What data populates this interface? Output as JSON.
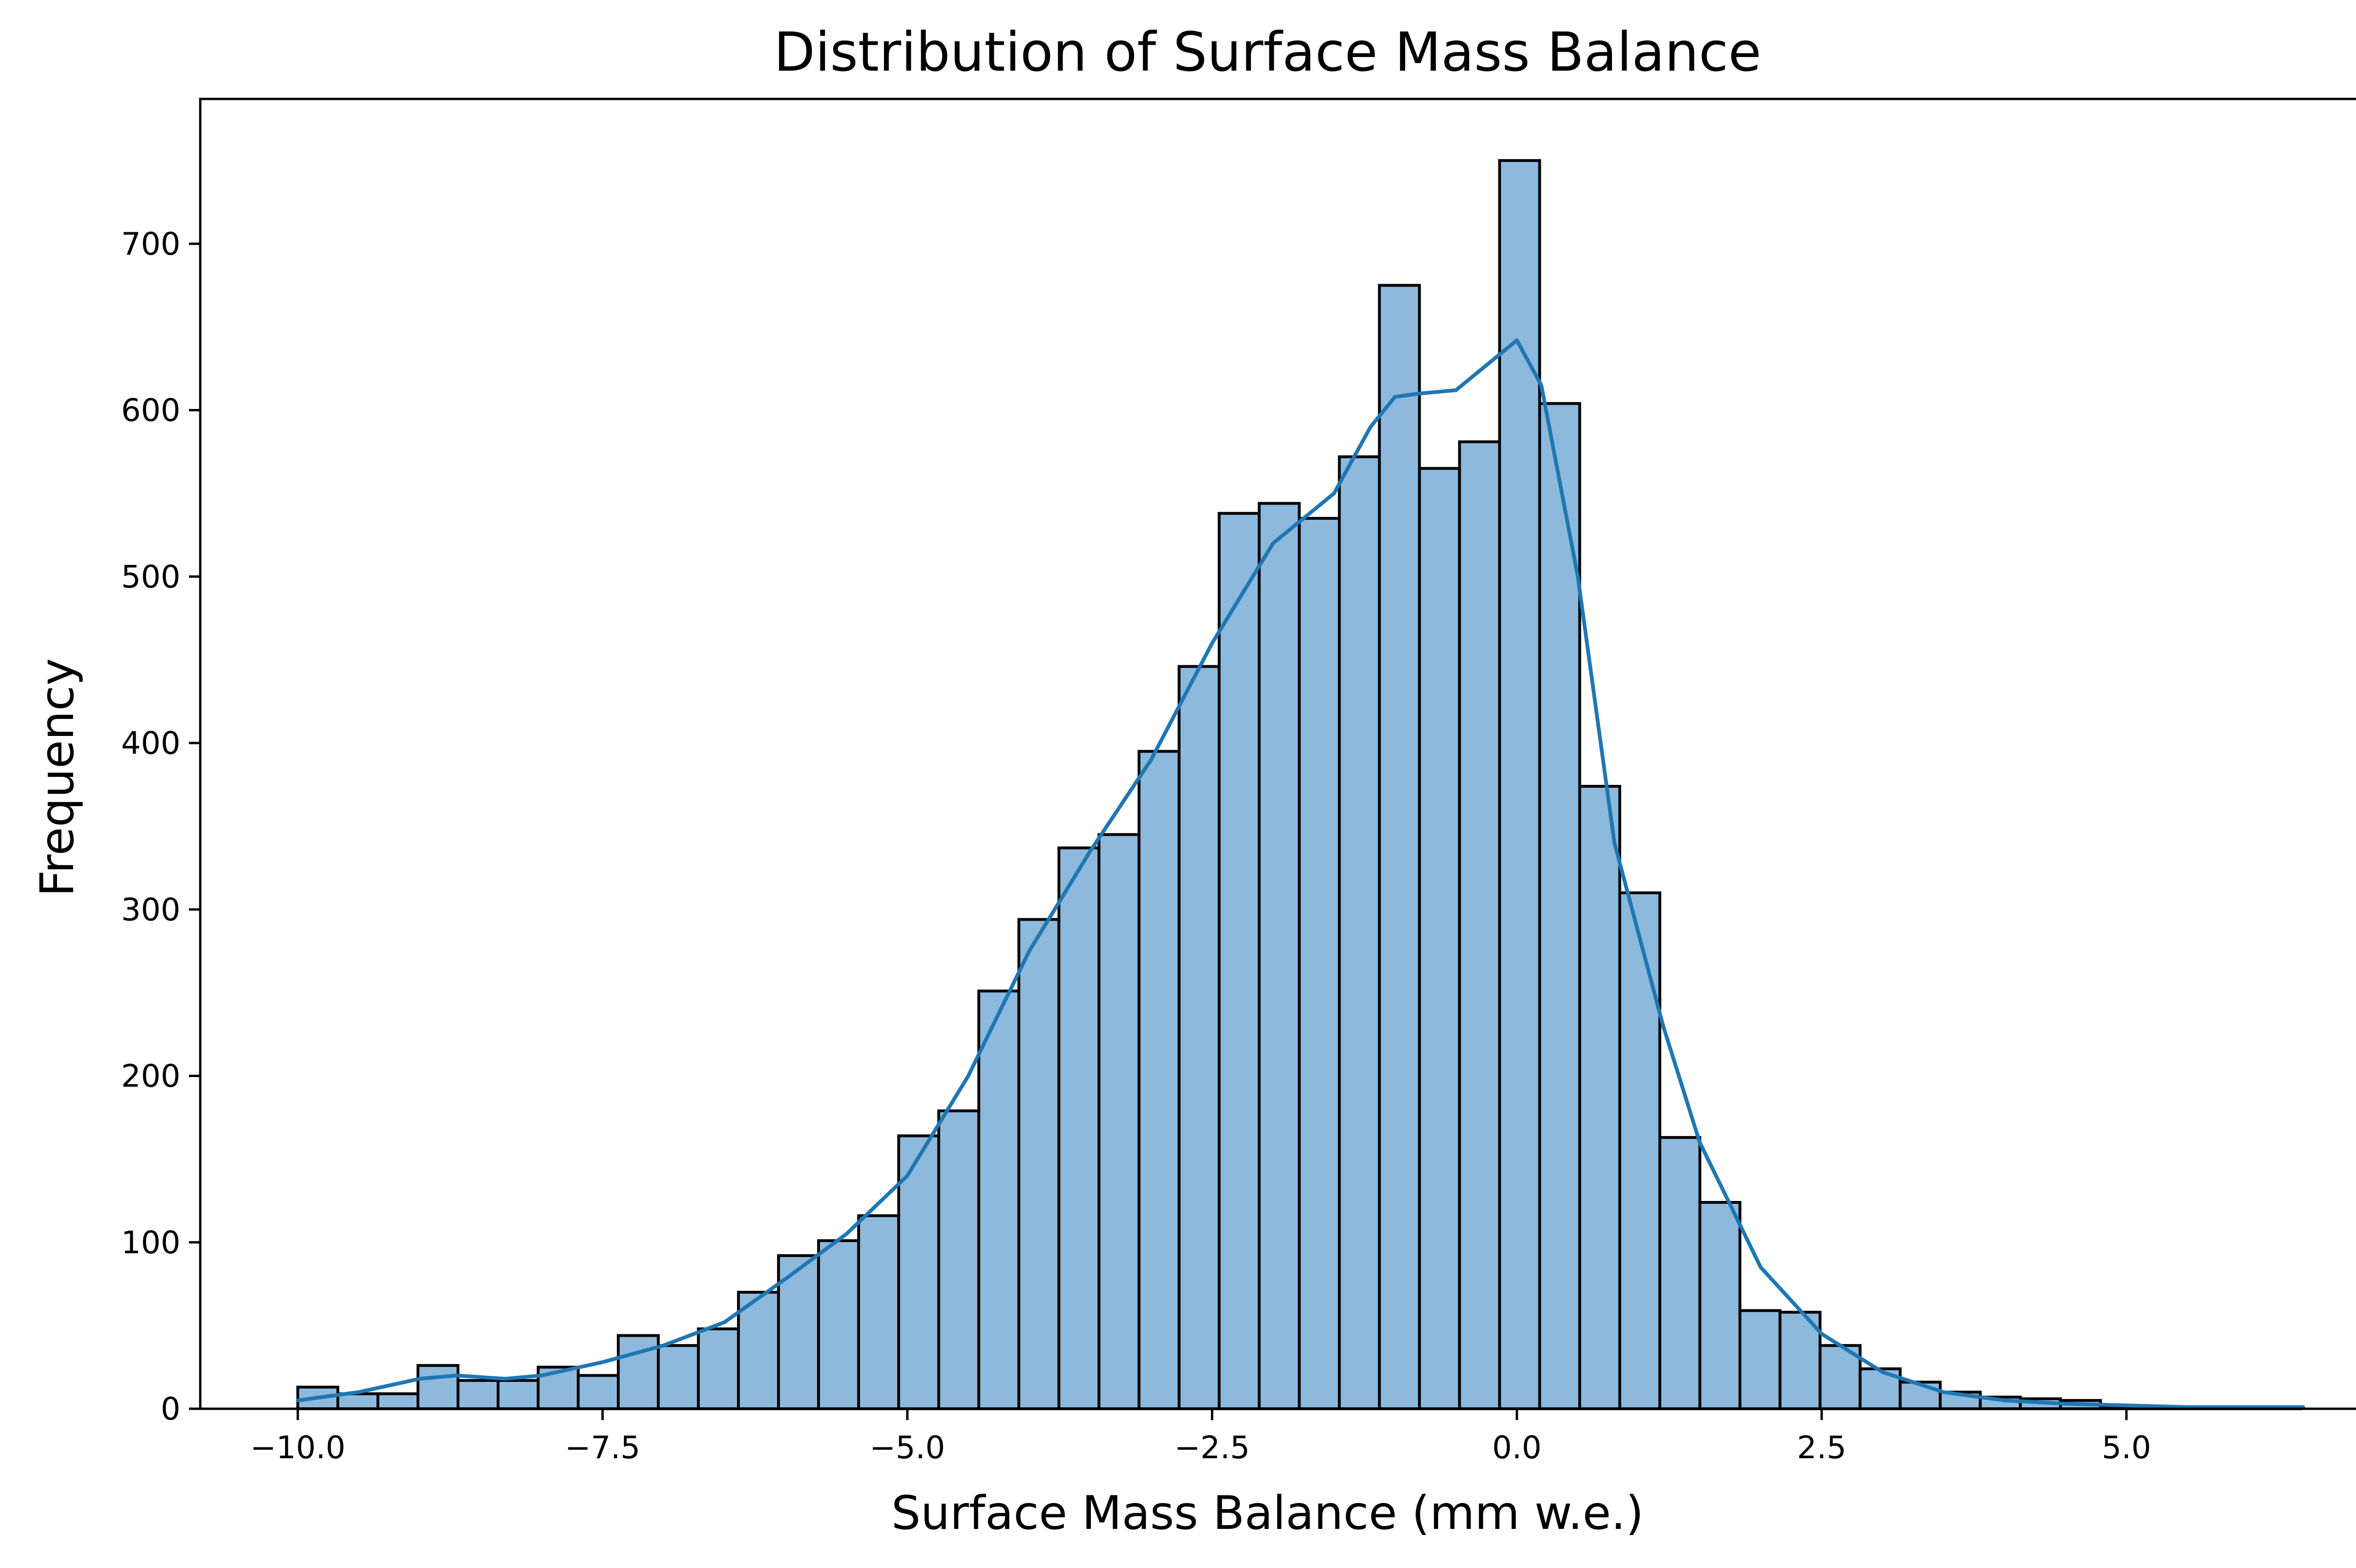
{
  "chart_data": {
    "type": "bar",
    "title": "Distribution of Surface Mass Balance",
    "xlabel": "Surface Mass Balance (mm w.e.)",
    "ylabel": "Frequency",
    "xlim": [
      -10.8,
      7.2
    ],
    "ylim": [
      0,
      787
    ],
    "x_ticks": [
      -10.0,
      -7.5,
      -5.0,
      -2.5,
      0.0,
      2.5,
      5.0
    ],
    "x_tick_labels": [
      "−10.0",
      "−7.5",
      "−5.0",
      "−2.5",
      "0.0",
      "2.5",
      "5.0"
    ],
    "y_ticks": [
      0,
      100,
      200,
      300,
      400,
      500,
      600,
      700
    ],
    "y_tick_labels": [
      "0",
      "100",
      "200",
      "300",
      "400",
      "500",
      "600",
      "700"
    ],
    "grid": false,
    "legend": null,
    "bin_start": -10.0,
    "bin_width": 0.3286,
    "counts": [
      13,
      9,
      9,
      26,
      17,
      17,
      25,
      20,
      44,
      38,
      48,
      70,
      92,
      101,
      116,
      164,
      179,
      251,
      294,
      337,
      345,
      395,
      446,
      538,
      544,
      535,
      572,
      675,
      565,
      581,
      750,
      604,
      374,
      310,
      163,
      124,
      59,
      58,
      38,
      24,
      16,
      10,
      7,
      6,
      5,
      1,
      1,
      1,
      1,
      1
    ],
    "kde": {
      "x": [
        -10.0,
        -9.5,
        -9.0,
        -8.7,
        -8.3,
        -8.0,
        -7.5,
        -7.0,
        -6.5,
        -6.0,
        -5.5,
        -5.0,
        -4.5,
        -4.0,
        -3.5,
        -3.0,
        -2.5,
        -2.0,
        -1.5,
        -1.2,
        -1.0,
        -0.8,
        -0.5,
        -0.2,
        0.0,
        0.2,
        0.5,
        0.8,
        1.2,
        1.5,
        2.0,
        2.5,
        3.0,
        3.5,
        4.0,
        4.5,
        5.0,
        5.5,
        6.0,
        6.45
      ],
      "y": [
        5,
        10,
        18,
        20,
        18,
        20,
        28,
        38,
        52,
        78,
        105,
        140,
        200,
        275,
        335,
        390,
        460,
        520,
        550,
        590,
        608,
        610,
        612,
        630,
        642,
        615,
        500,
        340,
        230,
        160,
        85,
        45,
        22,
        10,
        5,
        3,
        2,
        1,
        1,
        1
      ],
      "color": "#1f77b4"
    },
    "bar_color": "#8db9dc",
    "edge_color": "#000000"
  }
}
